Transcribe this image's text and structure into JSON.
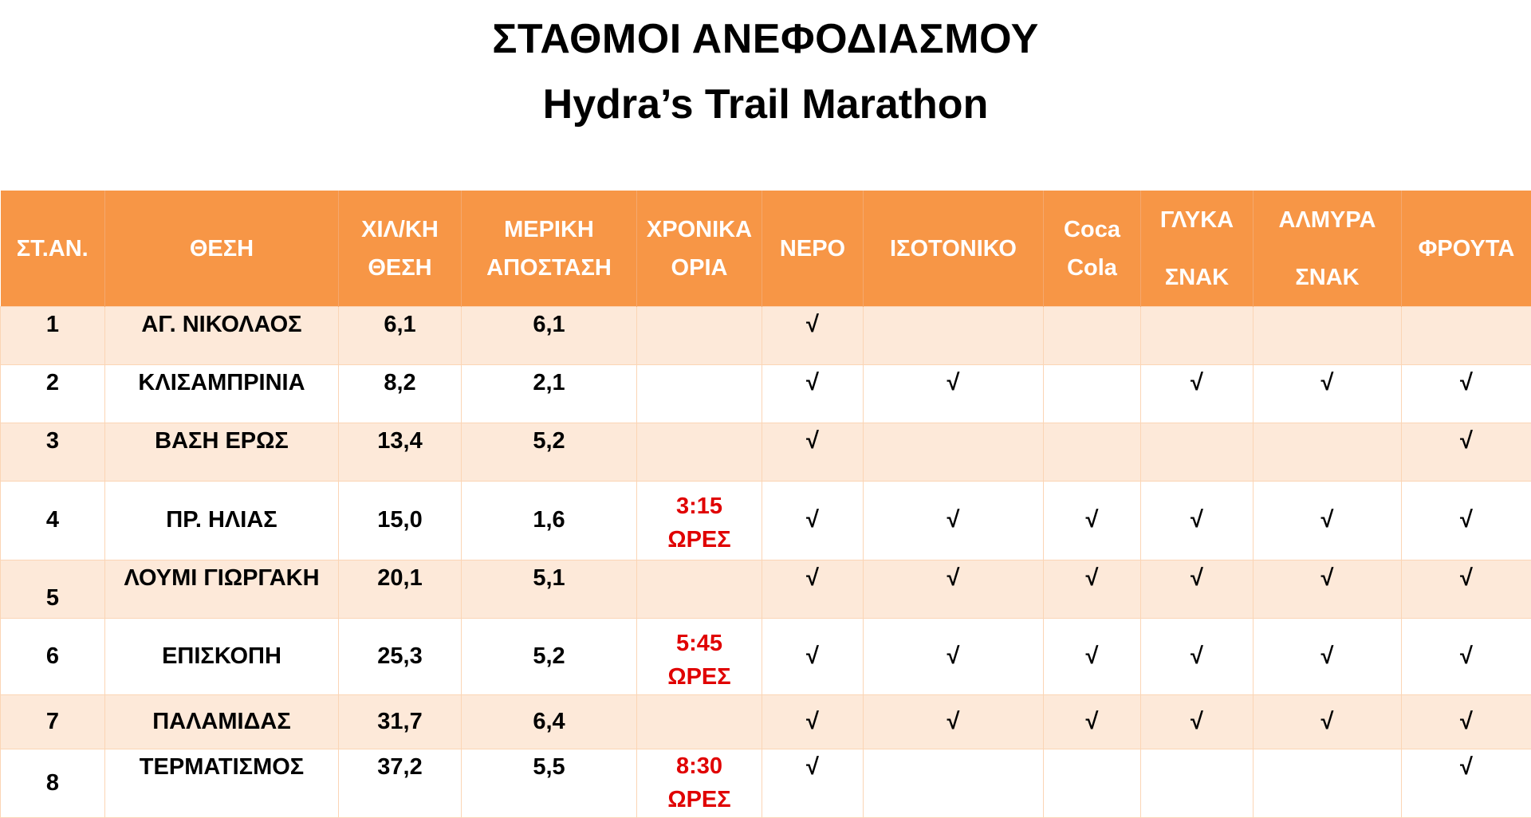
{
  "header": {
    "title": "ΣΤΑΘΜΟΙ ΑΝΕΦΟΔΙΑΣΜΟΥ",
    "subtitle": "Hydra’s Trail Marathon"
  },
  "table": {
    "columns": {
      "station": "ΣΤ.ΑΝ.",
      "location": "ΘΕΣΗ",
      "km_line1": "ΧΙΛ/ΚΗ",
      "km_line2": "ΘΕΣΗ",
      "partial_line1": "ΜΕΡΙΚΗ",
      "partial_line2": "ΑΠΟΣΤΑΣΗ",
      "cutoff_line1": "ΧΡΟΝΙΚΑ",
      "cutoff_line2": "ΟΡΙΑ",
      "water": "ΝΕΡΟ",
      "isotonic": "ΙΣΟΤΟΝΙΚΟ",
      "cola_line1": "Coca",
      "cola_line2": "Cola",
      "sweet_line1": "ΓΛΥΚΑ",
      "sweet_line2": "ΣΝΑΚ",
      "salty_line1": "ΑΛΜΥΡΑ",
      "salty_line2": "ΣΝΑΚ",
      "fruit": "ΦΡΟΥΤΑ"
    },
    "rows": [
      {
        "num": "1",
        "location": "ΑΓ. ΝΙΚΟΛΑΟΣ",
        "km": "6,1",
        "partial": "6,1",
        "cutoff_line1": "",
        "cutoff_line2": "",
        "water": "√",
        "isotonic": "",
        "cola": "",
        "sweet": "",
        "salty": "",
        "fruit": ""
      },
      {
        "num": "2",
        "location": "ΚΛΙΣΑΜΠΡΙΝΙΑ",
        "km": "8,2",
        "partial": "2,1",
        "cutoff_line1": "",
        "cutoff_line2": "",
        "water": "√",
        "isotonic": "√",
        "cola": "",
        "sweet": "√",
        "salty": "√",
        "fruit": "√"
      },
      {
        "num": "3",
        "location": "ΒΑΣΗ ΕΡΩΣ",
        "km": "13,4",
        "partial": "5,2",
        "cutoff_line1": "",
        "cutoff_line2": "",
        "water": "√",
        "isotonic": "",
        "cola": "",
        "sweet": "",
        "salty": "",
        "fruit": "√"
      },
      {
        "num": "4",
        "location": "ΠΡ. ΗΛΙΑΣ",
        "km": "15,0",
        "partial": "1,6",
        "cutoff_line1": "3:15",
        "cutoff_line2": "ΩΡΕΣ",
        "water": "√",
        "isotonic": "√",
        "cola": "√",
        "sweet": "√",
        "salty": "√",
        "fruit": "√"
      },
      {
        "num": "5",
        "location": "ΛΟΥΜΙ ΓΙΩΡΓΑΚΗ",
        "km": "20,1",
        "partial": "5,1",
        "cutoff_line1": "",
        "cutoff_line2": "",
        "water": "√",
        "isotonic": "√",
        "cola": "√",
        "sweet": "√",
        "salty": "√",
        "fruit": "√"
      },
      {
        "num": "6",
        "location": "ΕΠΙΣΚΟΠΗ",
        "km": "25,3",
        "partial": "5,2",
        "cutoff_line1": "5:45",
        "cutoff_line2": "ΩΡΕΣ",
        "water": "√",
        "isotonic": "√",
        "cola": "√",
        "sweet": "√",
        "salty": "√",
        "fruit": "√"
      },
      {
        "num": "7",
        "location": "ΠΑΛΑΜΙΔΑΣ",
        "km": "31,7",
        "partial": "6,4",
        "cutoff_line1": "",
        "cutoff_line2": "",
        "water": "√",
        "isotonic": "√",
        "cola": "√",
        "sweet": "√",
        "salty": "√",
        "fruit": "√"
      },
      {
        "num": "8",
        "location": "ΤΕΡΜΑΤΙΣΜΟΣ",
        "km": "37,2",
        "partial": "5,5",
        "cutoff_line1": "8:30",
        "cutoff_line2": "ΩΡΕΣ",
        "water": "√",
        "isotonic": "",
        "cola": "",
        "sweet": "",
        "salty": "",
        "fruit": "√"
      }
    ]
  }
}
